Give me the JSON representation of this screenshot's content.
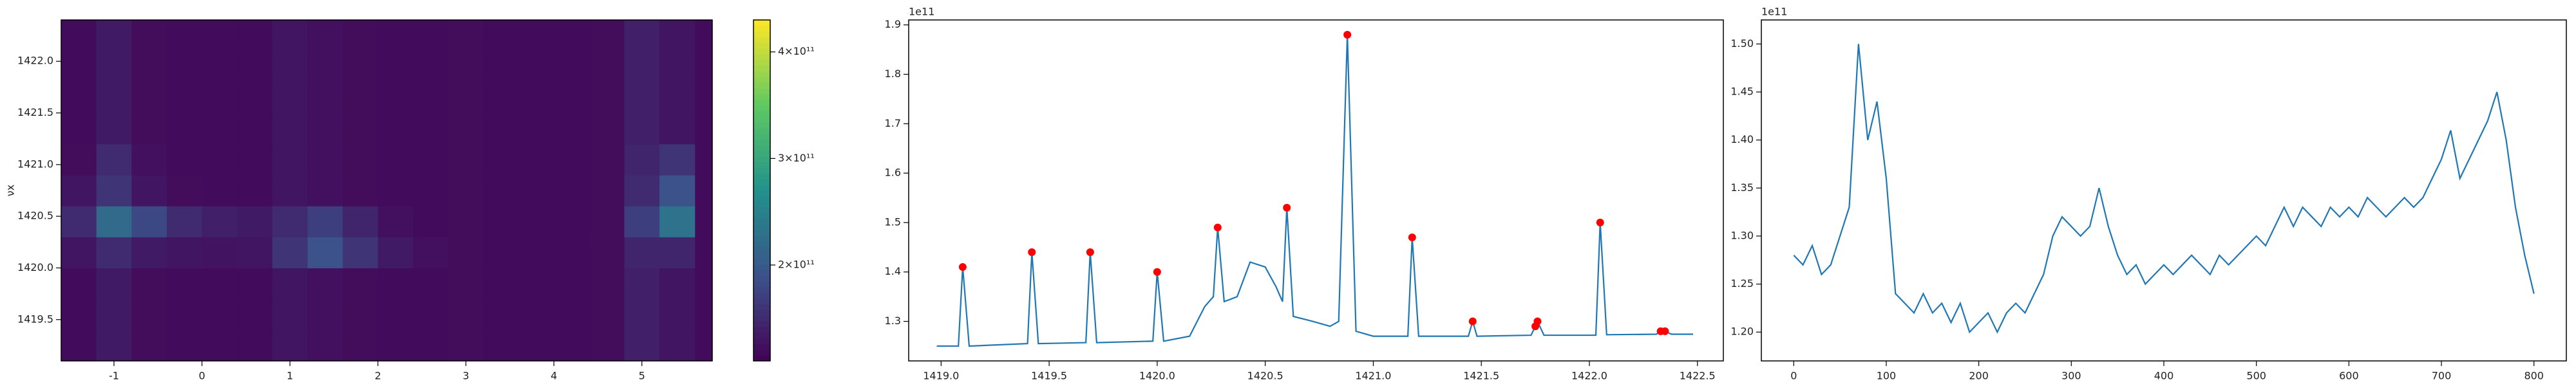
{
  "chart_data": [
    {
      "type": "heatmap",
      "ylabel": "νx",
      "colormap": "viridis",
      "x": [
        -1.4,
        -1.0,
        -0.6,
        -0.2,
        0.2,
        0.6,
        1.0,
        1.4,
        1.8,
        2.2,
        2.6,
        3.0,
        3.4,
        3.8,
        4.2,
        4.6,
        5.0,
        5.4
      ],
      "y": [
        1419.25,
        1419.55,
        1419.85,
        1420.15,
        1420.45,
        1420.75,
        1421.05,
        1421.35,
        1421.65,
        1421.95,
        1422.25
      ],
      "z": [
        [
          120000000000.0,
          135000000000.0,
          122000000000.0,
          120000000000.0,
          120000000000.0,
          120000000000.0,
          130000000000.0,
          125000000000.0,
          122000000000.0,
          120000000000.0,
          120000000000.0,
          122000000000.0,
          120000000000.0,
          120000000000.0,
          120000000000.0,
          122000000000.0,
          140000000000.0,
          130000000000.0
        ],
        [
          120000000000.0,
          135000000000.0,
          122000000000.0,
          120000000000.0,
          120000000000.0,
          120000000000.0,
          130000000000.0,
          125000000000.0,
          122000000000.0,
          120000000000.0,
          120000000000.0,
          122000000000.0,
          120000000000.0,
          120000000000.0,
          120000000000.0,
          122000000000.0,
          140000000000.0,
          130000000000.0
        ],
        [
          120000000000.0,
          135000000000.0,
          122000000000.0,
          120000000000.0,
          120000000000.0,
          120000000000.0,
          130000000000.0,
          125000000000.0,
          122000000000.0,
          120000000000.0,
          120000000000.0,
          122000000000.0,
          120000000000.0,
          120000000000.0,
          120000000000.0,
          122000000000.0,
          140000000000.0,
          130000000000.0
        ],
        [
          130000000000.0,
          150000000000.0,
          135000000000.0,
          130000000000.0,
          128000000000.0,
          130000000000.0,
          160000000000.0,
          190000000000.0,
          160000000000.0,
          135000000000.0,
          125000000000.0,
          122000000000.0,
          120000000000.0,
          120000000000.0,
          120000000000.0,
          122000000000.0,
          145000000000.0,
          145000000000.0
        ],
        [
          150000000000.0,
          220000000000.0,
          180000000000.0,
          150000000000.0,
          140000000000.0,
          135000000000.0,
          150000000000.0,
          170000000000.0,
          145000000000.0,
          125000000000.0,
          120000000000.0,
          122000000000.0,
          120000000000.0,
          120000000000.0,
          120000000000.0,
          122000000000.0,
          170000000000.0,
          230000000000.0
        ],
        [
          130000000000.0,
          160000000000.0,
          130000000000.0,
          122000000000.0,
          120000000000.0,
          120000000000.0,
          130000000000.0,
          125000000000.0,
          122000000000.0,
          120000000000.0,
          120000000000.0,
          122000000000.0,
          120000000000.0,
          120000000000.0,
          120000000000.0,
          122000000000.0,
          150000000000.0,
          190000000000.0
        ],
        [
          122000000000.0,
          150000000000.0,
          125000000000.0,
          120000000000.0,
          120000000000.0,
          120000000000.0,
          130000000000.0,
          125000000000.0,
          122000000000.0,
          120000000000.0,
          120000000000.0,
          122000000000.0,
          120000000000.0,
          120000000000.0,
          120000000000.0,
          122000000000.0,
          145000000000.0,
          160000000000.0
        ],
        [
          120000000000.0,
          135000000000.0,
          122000000000.0,
          120000000000.0,
          120000000000.0,
          120000000000.0,
          130000000000.0,
          125000000000.0,
          122000000000.0,
          120000000000.0,
          120000000000.0,
          122000000000.0,
          120000000000.0,
          120000000000.0,
          120000000000.0,
          122000000000.0,
          140000000000.0,
          130000000000.0
        ],
        [
          120000000000.0,
          135000000000.0,
          122000000000.0,
          120000000000.0,
          120000000000.0,
          120000000000.0,
          130000000000.0,
          125000000000.0,
          122000000000.0,
          120000000000.0,
          120000000000.0,
          122000000000.0,
          120000000000.0,
          120000000000.0,
          120000000000.0,
          122000000000.0,
          140000000000.0,
          130000000000.0
        ],
        [
          120000000000.0,
          135000000000.0,
          122000000000.0,
          120000000000.0,
          120000000000.0,
          120000000000.0,
          130000000000.0,
          125000000000.0,
          122000000000.0,
          120000000000.0,
          120000000000.0,
          122000000000.0,
          120000000000.0,
          120000000000.0,
          120000000000.0,
          122000000000.0,
          140000000000.0,
          130000000000.0
        ],
        [
          120000000000.0,
          135000000000.0,
          122000000000.0,
          120000000000.0,
          120000000000.0,
          120000000000.0,
          130000000000.0,
          125000000000.0,
          122000000000.0,
          120000000000.0,
          120000000000.0,
          122000000000.0,
          120000000000.0,
          120000000000.0,
          120000000000.0,
          122000000000.0,
          140000000000.0,
          130000000000.0
        ]
      ],
      "xlim": [
        -1.6,
        5.8
      ],
      "xticks": [
        -1,
        0,
        1,
        2,
        3,
        4,
        5
      ],
      "ylim": [
        1419.1,
        1422.4
      ],
      "yticks": [
        {
          "value": 1419.5,
          "label": "1419.5"
        },
        {
          "value": 1420,
          "label": "1420.0"
        },
        1420.5,
        {
          "value": 1421,
          "label": "1421.0"
        },
        1421.5,
        {
          "value": 1422,
          "label": "1422.0"
        }
      ],
      "clim": [
        110000000000.0,
        430000000000.0
      ],
      "cticks": [
        {
          "value": 200000000000.0,
          "label": "2×10¹¹"
        },
        {
          "value": 300000000000.0,
          "label": "3×10¹¹"
        },
        {
          "value": 400000000000.0,
          "label": "4×10¹¹"
        }
      ]
    },
    {
      "type": "line",
      "yaxis_offset": "1e11",
      "series": [
        {
          "color": "#1f77b4",
          "x": [
            1418.98,
            1419.08,
            1419.1,
            1419.13,
            1419.4,
            1419.42,
            1419.45,
            1419.67,
            1419.69,
            1419.72,
            1419.98,
            1420.0,
            1420.03,
            1420.15,
            1420.22,
            1420.26,
            1420.28,
            1420.31,
            1420.37,
            1420.43,
            1420.5,
            1420.55,
            1420.58,
            1420.6,
            1420.63,
            1420.72,
            1420.8,
            1420.84,
            1420.88,
            1420.92,
            1421.0,
            1421.16,
            1421.18,
            1421.21,
            1421.44,
            1421.46,
            1421.48,
            1421.73,
            1421.75,
            1421.76,
            1421.79,
            1422.03,
            1422.05,
            1422.08,
            1422.31,
            1422.33,
            1422.35,
            1422.38,
            1422.48
          ],
          "values": [
            125000000000.0,
            125000000000.0,
            141000000000.0,
            125000000000.0,
            125500000000.0,
            144000000000.0,
            125500000000.0,
            125700000000.0,
            144000000000.0,
            125700000000.0,
            126000000000.0,
            140000000000.0,
            126000000000.0,
            127000000000.0,
            133000000000.0,
            135000000000.0,
            149000000000.0,
            134000000000.0,
            135000000000.0,
            142000000000.0,
            141000000000.0,
            137000000000.0,
            134000000000.0,
            153000000000.0,
            131000000000.0,
            130000000000.0,
            129000000000.0,
            130000000000.0,
            188000000000.0,
            128000000000.0,
            127000000000.0,
            127000000000.0,
            147000000000.0,
            127000000000.0,
            127000000000.0,
            130000000000.0,
            127000000000.0,
            127200000000.0,
            129000000000.0,
            130000000000.0,
            127200000000.0,
            127200000000.0,
            150000000000.0,
            127300000000.0,
            127400000000.0,
            128000000000.0,
            128000000000.0,
            127400000000.0,
            127400000000.0
          ]
        },
        {
          "color": "#ff0000",
          "marker": "o",
          "x": [
            1419.1,
            1419.42,
            1419.69,
            1420.0,
            1420.28,
            1420.6,
            1420.88,
            1421.18,
            1421.46,
            1421.75,
            1421.76,
            1422.05,
            1422.33,
            1422.35
          ],
          "values": [
            141000000000.0,
            144000000000.0,
            144000000000.0,
            140000000000.0,
            149000000000.0,
            153000000000.0,
            188000000000.0,
            147000000000.0,
            130000000000.0,
            129000000000.0,
            130000000000.0,
            150000000000.0,
            128000000000.0,
            128000000000.0
          ]
        }
      ],
      "xlim": [
        1418.85,
        1422.62
      ],
      "xticks": [
        {
          "value": 1419,
          "label": "1419.0"
        },
        1419.5,
        {
          "value": 1420,
          "label": "1420.0"
        },
        1420.5,
        {
          "value": 1421,
          "label": "1421.0"
        },
        1421.5,
        {
          "value": 1422,
          "label": "1422.0"
        },
        1422.5
      ],
      "ylim": [
        122000000000.0,
        191000000000.0
      ],
      "yticks": [
        {
          "value": 130000000000.0,
          "label": "1.3"
        },
        {
          "value": 140000000000.0,
          "label": "1.4"
        },
        {
          "value": 150000000000.0,
          "label": "1.5"
        },
        {
          "value": 160000000000.0,
          "label": "1.6"
        },
        {
          "value": 170000000000.0,
          "label": "1.7"
        },
        {
          "value": 180000000000.0,
          "label": "1.8"
        },
        {
          "value": 190000000000.0,
          "label": "1.9"
        }
      ]
    },
    {
      "type": "line",
      "yaxis_offset": "1e11",
      "series": [
        {
          "color": "#1f77b4",
          "x": [
            0,
            10,
            20,
            30,
            40,
            50,
            60,
            70,
            80,
            90,
            100,
            110,
            120,
            130,
            140,
            150,
            160,
            170,
            180,
            190,
            200,
            210,
            220,
            230,
            240,
            250,
            260,
            270,
            280,
            290,
            300,
            310,
            320,
            330,
            340,
            350,
            360,
            370,
            380,
            390,
            400,
            410,
            420,
            430,
            440,
            450,
            460,
            470,
            480,
            490,
            500,
            510,
            520,
            530,
            540,
            550,
            560,
            570,
            580,
            590,
            600,
            610,
            620,
            630,
            640,
            650,
            660,
            670,
            680,
            690,
            700,
            710,
            720,
            730,
            740,
            750,
            760,
            770,
            780,
            790,
            800
          ],
          "values": [
            128000000000.0,
            127000000000.0,
            129000000000.0,
            126000000000.0,
            127000000000.0,
            130000000000.0,
            133000000000.0,
            150000000000.0,
            140000000000.0,
            144000000000.0,
            136000000000.0,
            124000000000.0,
            123000000000.0,
            122000000000.0,
            124000000000.0,
            122000000000.0,
            123000000000.0,
            121000000000.0,
            123000000000.0,
            120000000000.0,
            121000000000.0,
            122000000000.0,
            120000000000.0,
            122000000000.0,
            123000000000.0,
            122000000000.0,
            124000000000.0,
            126000000000.0,
            130000000000.0,
            132000000000.0,
            131000000000.0,
            130000000000.0,
            131000000000.0,
            135000000000.0,
            131000000000.0,
            128000000000.0,
            126000000000.0,
            127000000000.0,
            125000000000.0,
            126000000000.0,
            127000000000.0,
            126000000000.0,
            127000000000.0,
            128000000000.0,
            127000000000.0,
            126000000000.0,
            128000000000.0,
            127000000000.0,
            128000000000.0,
            129000000000.0,
            130000000000.0,
            129000000000.0,
            131000000000.0,
            133000000000.0,
            131000000000.0,
            133000000000.0,
            132000000000.0,
            131000000000.0,
            133000000000.0,
            132000000000.0,
            133000000000.0,
            132000000000.0,
            134000000000.0,
            133000000000.0,
            132000000000.0,
            133000000000.0,
            134000000000.0,
            133000000000.0,
            134000000000.0,
            136000000000.0,
            138000000000.0,
            141000000000.0,
            136000000000.0,
            138000000000.0,
            140000000000.0,
            142000000000.0,
            145000000000.0,
            140000000000.0,
            133000000000.0,
            128000000000.0,
            124000000000.0
          ]
        }
      ],
      "xlim": [
        -35,
        835
      ],
      "xticks": [
        0,
        100,
        200,
        300,
        400,
        500,
        600,
        700,
        800
      ],
      "ylim": [
        117000000000.0,
        152500000000.0
      ],
      "yticks": [
        {
          "value": 120000000000.0,
          "label": "1.20"
        },
        {
          "value": 125000000000.0,
          "label": "1.25"
        },
        {
          "value": 130000000000.0,
          "label": "1.30"
        },
        {
          "value": 135000000000.0,
          "label": "1.35"
        },
        {
          "value": 140000000000.0,
          "label": "1.40"
        },
        {
          "value": 145000000000.0,
          "label": "1.45"
        },
        {
          "value": 150000000000.0,
          "label": "1.50"
        }
      ]
    }
  ]
}
